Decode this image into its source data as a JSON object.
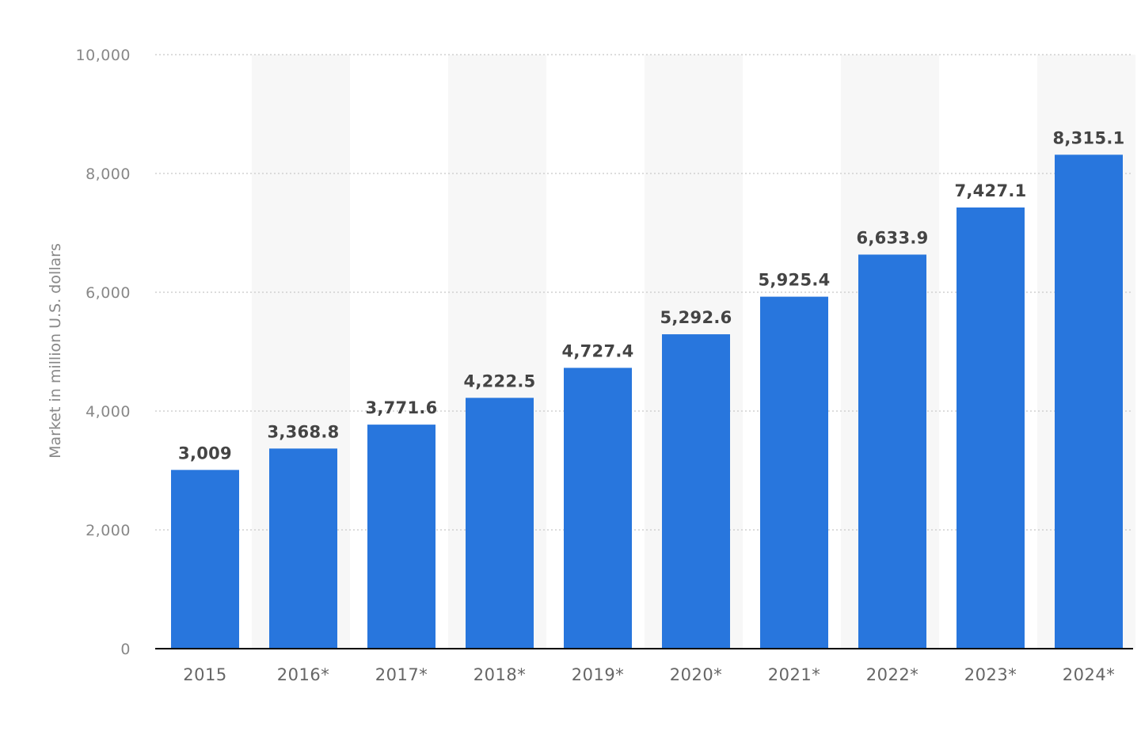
{
  "chart_data": {
    "type": "bar",
    "title": "",
    "xlabel": "",
    "ylabel": "Market in million U.S. dollars",
    "categories": [
      "2015",
      "2016*",
      "2017*",
      "2018*",
      "2019*",
      "2020*",
      "2021*",
      "2022*",
      "2023*",
      "2024*"
    ],
    "values": [
      3009,
      3368.8,
      3771.6,
      4222.5,
      4727.4,
      5292.6,
      5925.4,
      6633.9,
      7427.1,
      8315.1
    ],
    "value_labels": [
      "3,009",
      "3,368.8",
      "3,771.6",
      "4,222.5",
      "4,727.4",
      "5,292.6",
      "5,925.4",
      "6,633.9",
      "7,427.1",
      "8,315.1"
    ],
    "yticks": [
      0,
      2000,
      4000,
      6000,
      8000,
      10000
    ],
    "ytick_labels": [
      "0",
      "2,000",
      "4,000",
      "6,000",
      "8,000",
      "10,000"
    ],
    "ylim": [
      0,
      10000
    ],
    "grid": true,
    "legend": "none",
    "colors": {
      "bar": "#2876dd",
      "alt_band": "#f7f7f7",
      "gridline": "#c8c8c8",
      "axis": "#000000"
    }
  }
}
